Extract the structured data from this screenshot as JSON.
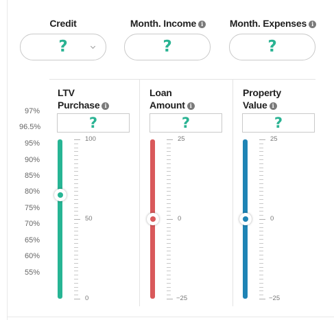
{
  "top_fields": [
    {
      "label": "Credit",
      "value": "?",
      "has_info": false,
      "has_dropdown": true
    },
    {
      "label": "Month. Income",
      "value": "?",
      "has_info": true,
      "has_dropdown": false
    },
    {
      "label": "Month. Expenses",
      "value": "?",
      "has_info": true,
      "has_dropdown": false
    }
  ],
  "ltv_labels": [
    "97%",
    "96.5%",
    "95%",
    "90%",
    "85%",
    "80%",
    "75%",
    "70%",
    "65%",
    "60%",
    "55%"
  ],
  "columns": [
    {
      "label_line1": "LTV",
      "label_line2": "Purchase",
      "value": "?",
      "color": "#27b594",
      "scale_top": "100",
      "scale_mid": "50",
      "scale_bottom": "0",
      "slider_fraction_from_top": 0.35
    },
    {
      "label_line1": "Loan",
      "label_line2": "Amount",
      "value": "?",
      "color": "#d9595b",
      "scale_top": "25",
      "scale_mid": "0",
      "scale_bottom": "−25",
      "slider_fraction_from_top": 0.5
    },
    {
      "label_line1": "Property",
      "label_line2": "Value",
      "value": "?",
      "color": "#1f84b5",
      "scale_top": "25",
      "scale_mid": "0",
      "scale_bottom": "−25",
      "slider_fraction_from_top": 0.5
    }
  ],
  "info_glyph": "i"
}
